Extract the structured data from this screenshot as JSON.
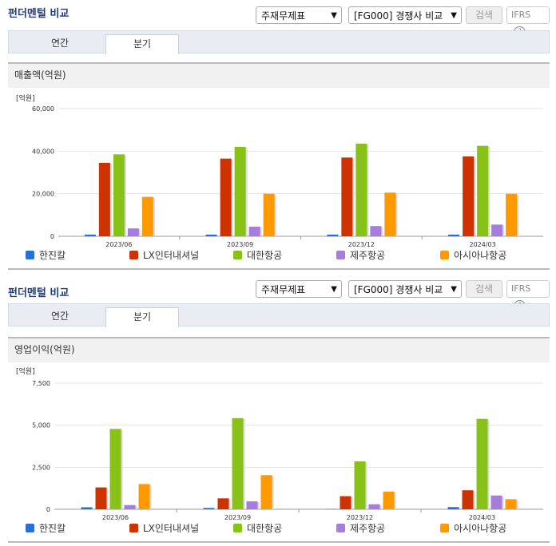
{
  "panels": [
    {
      "title": "펀더멘털 비교",
      "select1": "주재무제표",
      "select2": "[FG000] 경쟁사 비교",
      "search_label": "검색",
      "ifrs_label": "IFRS",
      "tabs": [
        "연간",
        "분기"
      ],
      "active_tab": 1,
      "metric_label": "매출액(억원)",
      "unit_label": "[억원]"
    },
    {
      "title": "펀더멘털 비교",
      "select1": "주재무제표",
      "select2": "[FG000] 경쟁사 비교",
      "search_label": "검색",
      "ifrs_label": "IFRS",
      "tabs": [
        "연간",
        "분기"
      ],
      "active_tab": 1,
      "metric_label": "영업이익(억원)",
      "unit_label": "[억원]"
    }
  ],
  "colors": [
    "#2a6fd6",
    "#cc3300",
    "#88c219",
    "#a57ddc",
    "#ff9900"
  ],
  "chart_data": [
    {
      "type": "bar",
      "categories": [
        "2023/06",
        "2023/09",
        "2023/12",
        "2024/03"
      ],
      "ylim": [
        0,
        60000
      ],
      "yticks": [
        "0",
        "20,000",
        "40,000",
        "60,000"
      ],
      "ytick_values": [
        0,
        20000,
        40000,
        60000
      ],
      "series": [
        {
          "name": "한진칼",
          "values": [
            800,
            800,
            800,
            800
          ]
        },
        {
          "name": "LX인터내셔널",
          "values": [
            34500,
            36500,
            37000,
            37500
          ]
        },
        {
          "name": "대한항공",
          "values": [
            38500,
            42000,
            43500,
            42500
          ]
        },
        {
          "name": "제주항공",
          "values": [
            3700,
            4500,
            4800,
            5500
          ]
        },
        {
          "name": "아시아나항공",
          "values": [
            18500,
            20000,
            20500,
            20000
          ]
        }
      ]
    },
    {
      "type": "bar",
      "categories": [
        "2023/06",
        "2023/09",
        "2023/12",
        "2024/03"
      ],
      "ylim": [
        0,
        7500
      ],
      "yticks": [
        "0",
        "2,500",
        "5,000",
        "7,500"
      ],
      "ytick_values": [
        0,
        2500,
        5000,
        7500
      ],
      "series": [
        {
          "name": "한진칼",
          "values": [
            120,
            80,
            20,
            130
          ]
        },
        {
          "name": "LX인터내셔널",
          "values": [
            1300,
            650,
            780,
            1130
          ]
        },
        {
          "name": "대한항공",
          "values": [
            4780,
            5420,
            2850,
            5380
          ]
        },
        {
          "name": "제주항공",
          "values": [
            250,
            470,
            300,
            820
          ]
        },
        {
          "name": "아시아나항공",
          "values": [
            1500,
            2030,
            1050,
            600
          ]
        }
      ]
    }
  ]
}
